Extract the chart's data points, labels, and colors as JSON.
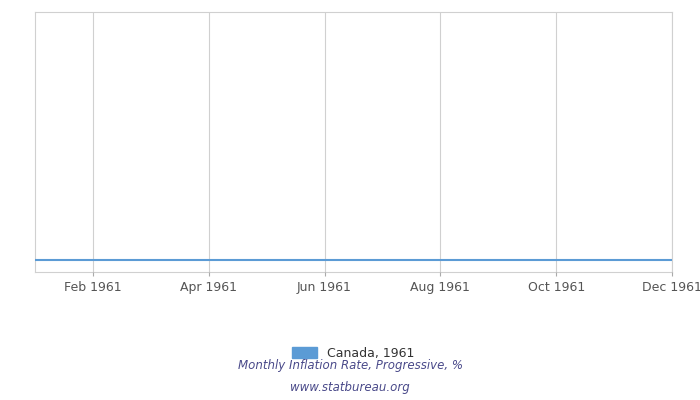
{
  "title": "",
  "x_tick_labels": [
    "Feb 1961",
    "Apr 1961",
    "Jun 1961",
    "Aug 1961",
    "Oct 1961",
    "Dec 1961"
  ],
  "x_tick_positions": [
    2,
    4,
    6,
    8,
    10,
    12
  ],
  "x_months": [
    1,
    2,
    3,
    4,
    5,
    6,
    7,
    8,
    9,
    10,
    11,
    12
  ],
  "y_values": [
    0.0,
    0.0,
    0.0,
    0.0,
    0.0,
    0.0,
    0.0,
    0.0,
    0.0,
    0.0,
    0.0,
    0.0
  ],
  "line_color": "#5b9bd5",
  "legend_label": "Canada, 1961",
  "subtitle1": "Monthly Inflation Rate, Progressive, %",
  "subtitle2": "www.statbureau.org",
  "xlim": [
    1,
    12
  ],
  "ylim": [
    -0.05,
    1.0
  ],
  "background_color": "#ffffff",
  "grid_color": "#d0d0d0",
  "axis_color": "#aaaaaa",
  "tick_color": "#555555",
  "font_color_subtitle": "#4a4a8a",
  "legend_color": "#333333"
}
